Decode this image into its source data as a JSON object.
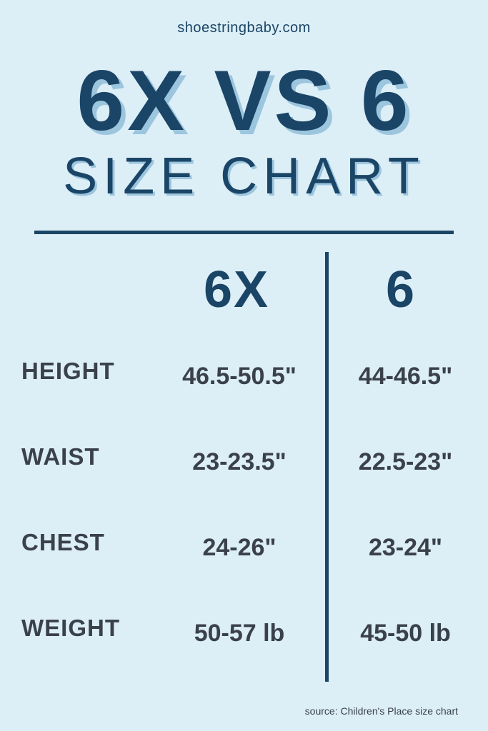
{
  "website": "shoestringbaby.com",
  "title_main": "6X VS 6",
  "title_sub": "SIZE CHART",
  "columns": {
    "a": "6X",
    "b": "6"
  },
  "rows": [
    {
      "label": "HEIGHT",
      "a": "46.5-50.5\"",
      "b": "44-46.5\""
    },
    {
      "label": "WAIST",
      "a": "23-23.5\"",
      "b": "22.5-23\""
    },
    {
      "label": "CHEST",
      "a": "24-26\"",
      "b": "23-24\""
    },
    {
      "label": "WEIGHT",
      "a": "50-57 lb",
      "b": "45-50 lb"
    }
  ],
  "source": "source: Children's Place  size chart",
  "colors": {
    "background": "#dceef6",
    "primary": "#1b4566",
    "text": "#3a414b",
    "shadow": "#9cc5de"
  },
  "styling": {
    "title_main_fontsize": 120,
    "title_sub_fontsize": 72,
    "col_header_fontsize": 72,
    "row_label_fontsize": 33,
    "cell_fontsize": 34,
    "website_fontsize": 20,
    "source_fontsize": 14,
    "divider_width": 5
  },
  "type": "table"
}
